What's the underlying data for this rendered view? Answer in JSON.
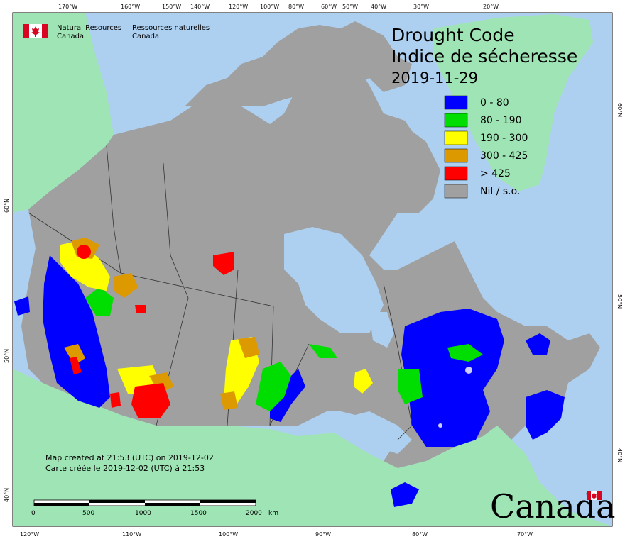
{
  "header": {
    "dept_en_1": "Natural Resources",
    "dept_en_2": "Canada",
    "dept_fr_1": "Ressources naturelles",
    "dept_fr_2": "Canada"
  },
  "title": {
    "en": "Drought Code",
    "fr": "Indice de sécheresse",
    "date": "2019-11-29"
  },
  "legend": [
    {
      "label": "0 - 80",
      "color": "#0000ff"
    },
    {
      "label": "80 - 190",
      "color": "#00dd00"
    },
    {
      "label": "190 - 300",
      "color": "#ffff00"
    },
    {
      "label": "300 - 425",
      "color": "#dd9900"
    },
    {
      "label": "> 425",
      "color": "#ff0000"
    },
    {
      "label": "Nil / s.o.",
      "color": "#a0a0a0"
    }
  ],
  "footer": {
    "created_en": "Map created at 21:53 (UTC) on 2019-12-02",
    "created_fr": "Carte créée le 2019-12-02 (UTC) à 21:53",
    "wordmark": "Canada"
  },
  "scale_bar": {
    "labels": [
      "0",
      "500",
      "1000",
      "1500",
      "2000"
    ],
    "unit": "km"
  },
  "top_ticks": [
    "170°W",
    "160°W",
    "150°W",
    "140°W",
    "120°W",
    "100°W",
    "80°W",
    "60°W",
    "50°W",
    "40°W",
    "30°W",
    "20°W"
  ],
  "bottom_ticks": [
    "120°W",
    "110°W",
    "100°W",
    "90°W",
    "80°W",
    "70°W"
  ],
  "left_ticks": [
    "60°N",
    "50°N",
    "40°N"
  ],
  "right_ticks": [
    "60°N",
    "50°N",
    "40°N"
  ],
  "colors": {
    "ocean": "#aed0f0",
    "foreign_land": "#9fe4b4",
    "canada_nil": "#a0a0a0",
    "lakes": "#aed0f0"
  }
}
